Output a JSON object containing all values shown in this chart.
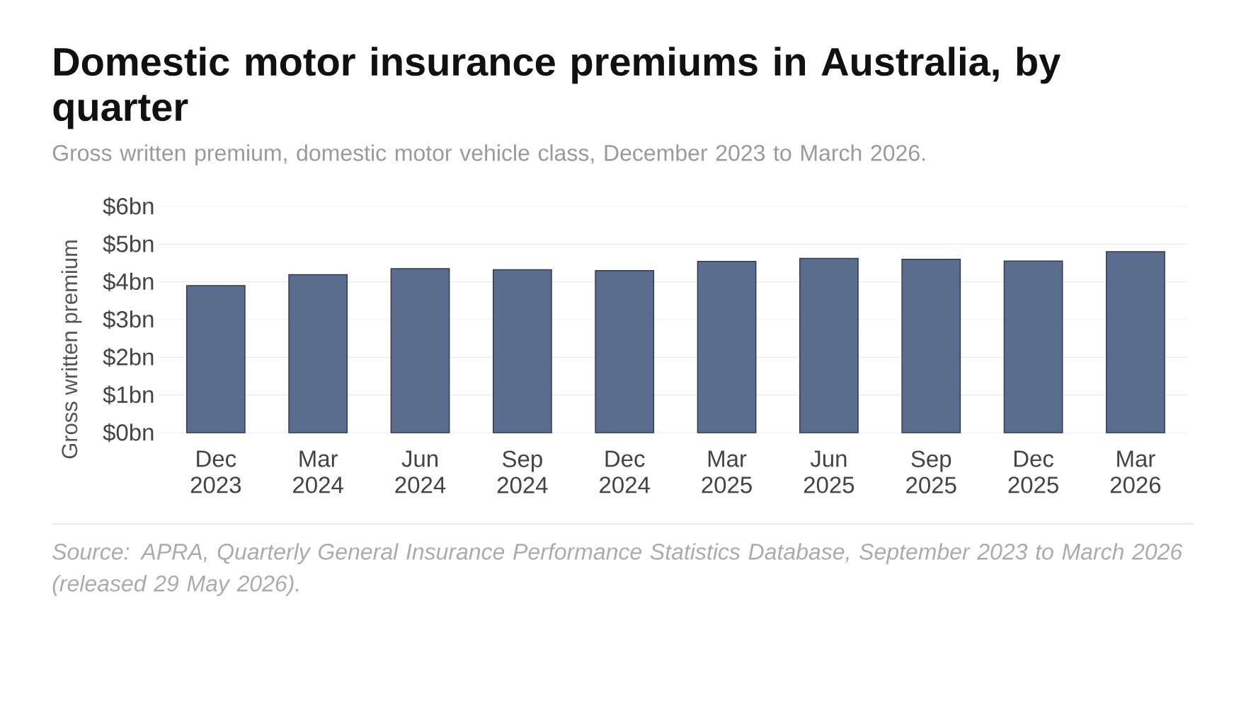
{
  "chart_data": {
    "type": "bar",
    "title": "Domestic motor insurance premiums in Australia, by quarter",
    "subtitle": "Gross written premium, domestic motor vehicle class, December 2023 to March 2026.",
    "ylabel": "Gross written premium",
    "categories": [
      "Dec 2023",
      "Mar 2024",
      "Jun 2024",
      "Sep 2024",
      "Dec 2024",
      "Mar 2025",
      "Jun 2025",
      "Sep 2025",
      "Dec 2025",
      "Mar 2026"
    ],
    "values": [
      3.9,
      4.19,
      4.35,
      4.32,
      4.3,
      4.54,
      4.62,
      4.6,
      4.55,
      4.8
    ],
    "color": "#5a6d8e",
    "ylim": [
      0,
      6
    ],
    "yticks": [
      {
        "value": 0,
        "label": "$0bn"
      },
      {
        "value": 1,
        "label": "$1bn"
      },
      {
        "value": 2,
        "label": "$2bn"
      },
      {
        "value": 3,
        "label": "$3bn"
      },
      {
        "value": 4,
        "label": "$4bn"
      },
      {
        "value": 5,
        "label": "$5bn"
      },
      {
        "value": 6,
        "label": "$6bn"
      }
    ],
    "grid": "y",
    "annotations": [
      "Source: APRA, Quarterly General Insurance Performance Statistics Database, September 2023 to March 2026 (released 29 May 2026)."
    ]
  }
}
